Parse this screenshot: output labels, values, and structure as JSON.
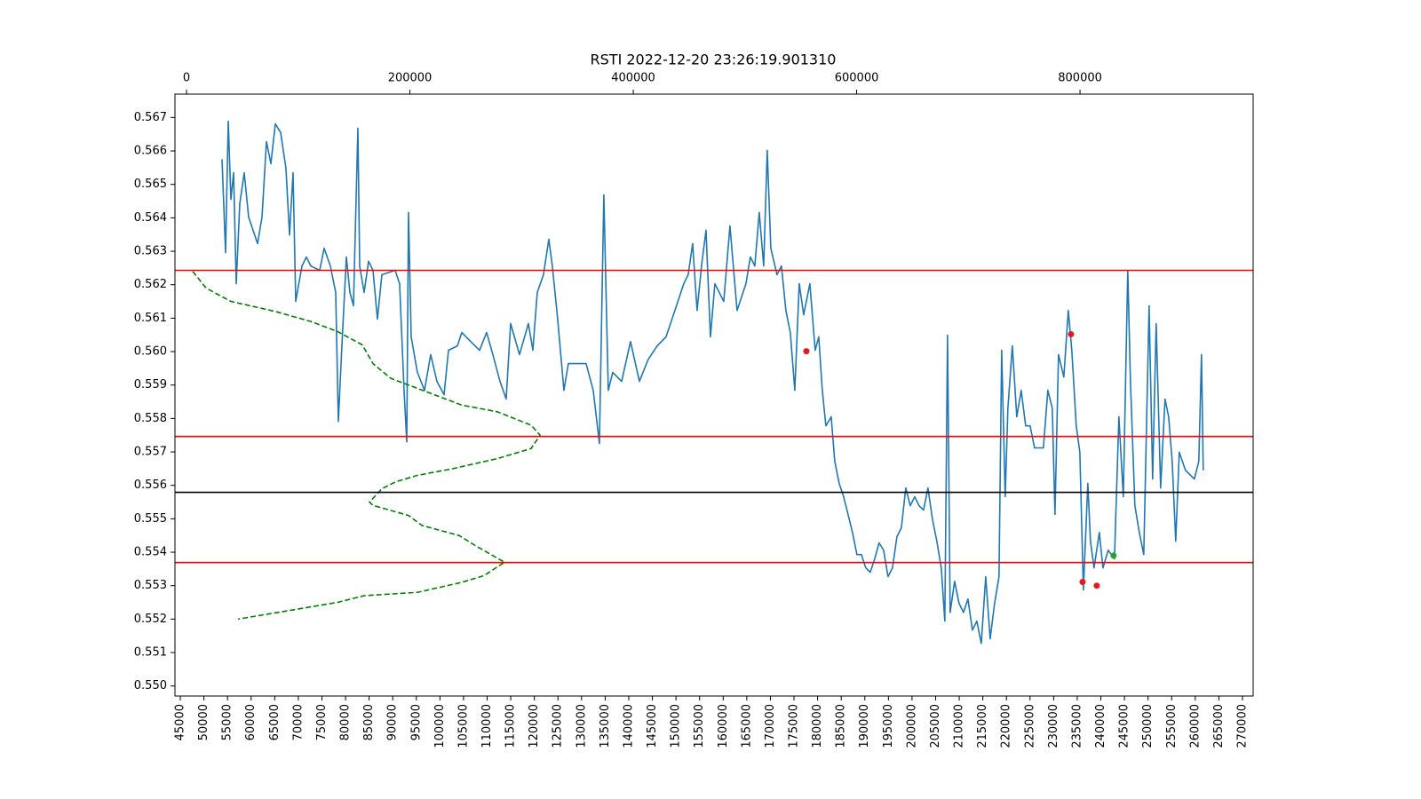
{
  "chart_data": {
    "type": "line",
    "title": "RSTI 2022-12-20 23:26:19.901310",
    "xlim": [
      43870,
      272260
    ],
    "xticks": [
      45000,
      50000,
      55000,
      60000,
      65000,
      70000,
      75000,
      80000,
      85000,
      90000,
      95000,
      100000,
      105000,
      110000,
      115000,
      120000,
      125000,
      130000,
      135000,
      140000,
      145000,
      150000,
      155000,
      160000,
      165000,
      170000,
      175000,
      180000,
      185000,
      190000,
      195000,
      200000,
      205000,
      210000,
      215000,
      220000,
      225000,
      230000,
      235000,
      240000,
      245000,
      250000,
      255000,
      260000,
      265000,
      270000
    ],
    "x2lim": [
      -10340,
      955000
    ],
    "x2ticks": [
      0,
      200000,
      400000,
      600000,
      800000
    ],
    "ylim": [
      0.5497,
      0.5677
    ],
    "yticks": [
      {
        "value": 0.55,
        "label": "0.550"
      },
      0.551,
      0.552,
      0.553,
      0.554,
      0.555,
      0.556,
      0.557,
      0.558,
      0.559,
      {
        "value": 0.56,
        "label": "0.560"
      },
      0.561,
      0.562,
      0.563,
      0.564,
      0.565,
      0.566,
      0.567
    ],
    "hlines": [
      {
        "value": 0.56243,
        "color": "#ff0000"
      },
      {
        "value": 0.55746,
        "color": "#ff0000"
      },
      {
        "value": 0.55579,
        "color": "#000000"
      },
      {
        "value": 0.55369,
        "color": "#ff0000"
      }
    ],
    "series": [
      {
        "kind": "line",
        "color": "#1f77b4",
        "x": [
          53840,
          54590,
          55160,
          55720,
          56290,
          56850,
          57600,
          58540,
          59480,
          61370,
          62310,
          63250,
          64190,
          65130,
          66260,
          67380,
          68140,
          68890,
          69450,
          70770,
          71710,
          72650,
          74530,
          75470,
          76790,
          77920,
          78480,
          79230,
          80180,
          80930,
          81680,
          82620,
          83000,
          83940,
          84880,
          85820,
          86760,
          87700,
          90520,
          91460,
          92400,
          92970,
          93340,
          93910,
          95220,
          96730,
          98040,
          99360,
          100870,
          101810,
          103690,
          104630,
          106510,
          108390,
          109890,
          111210,
          112720,
          114030,
          114970,
          116850,
          118740,
          119680,
          120620,
          121930,
          123060,
          123810,
          124940,
          126260,
          127200,
          130960,
          132470,
          133780,
          134720,
          135660,
          136600,
          138490,
          140370,
          142250,
          144130,
          146010,
          147890,
          149770,
          151650,
          152590,
          153530,
          154470,
          155410,
          156360,
          157300,
          158240,
          160120,
          161430,
          162940,
          164820,
          165760,
          166700,
          167640,
          168580,
          169330,
          170090,
          171400,
          172340,
          173280,
          174220,
          175170,
          176110,
          177050,
          178360,
          179490,
          180240,
          181000,
          181750,
          182880,
          183630,
          184570,
          185510,
          186450,
          187390,
          188330,
          189270,
          190210,
          191150,
          192090,
          193030,
          193980,
          194920,
          195860,
          196800,
          197740,
          198680,
          199620,
          200560,
          201500,
          202440,
          203380,
          204320,
          205260,
          206200,
          206950,
          207520,
          208080,
          209020,
          209960,
          210900,
          211850,
          212790,
          213730,
          214670,
          215610,
          216550,
          217490,
          218430,
          218990,
          219740,
          220310,
          221250,
          222190,
          223130,
          224070,
          225010,
          225950,
          227830,
          228770,
          229710,
          230280,
          231030,
          232160,
          233100,
          233850,
          234790,
          235550,
          236300,
          237240,
          237800,
          238560,
          239680,
          240440,
          241560,
          242880,
          243820,
          244760,
          245700,
          246270,
          247210,
          248150,
          249090,
          250220,
          250970,
          251720,
          252660,
          253600,
          254360,
          255110,
          255860,
          256610,
          257930,
          259810,
          260750,
          261320,
          261690
        ],
        "values": [
          0.56575,
          0.56296,
          0.56689,
          0.56455,
          0.56535,
          0.56203,
          0.56442,
          0.56535,
          0.56402,
          0.56323,
          0.56402,
          0.56628,
          0.56562,
          0.56681,
          0.56655,
          0.56548,
          0.56349,
          0.56535,
          0.5615,
          0.56256,
          0.56283,
          0.56256,
          0.56243,
          0.56309,
          0.56256,
          0.56177,
          0.55791,
          0.56017,
          0.56283,
          0.56177,
          0.56137,
          0.56668,
          0.56256,
          0.56177,
          0.5627,
          0.56243,
          0.56097,
          0.5623,
          0.56243,
          0.56203,
          0.55884,
          0.5573,
          0.56416,
          0.56044,
          0.55938,
          0.55884,
          0.55991,
          0.55911,
          0.55871,
          0.56004,
          0.56017,
          0.56057,
          0.5603,
          0.56004,
          0.56057,
          0.55991,
          0.55911,
          0.55858,
          0.56084,
          0.55991,
          0.56084,
          0.56004,
          0.56177,
          0.5623,
          0.56336,
          0.56256,
          0.56097,
          0.55884,
          0.55964,
          0.55964,
          0.55884,
          0.55725,
          0.56469,
          0.55884,
          0.55938,
          0.55911,
          0.5603,
          0.55911,
          0.55977,
          0.56017,
          0.56044,
          0.56123,
          0.56203,
          0.5623,
          0.56323,
          0.56123,
          0.56256,
          0.56363,
          0.56044,
          0.56203,
          0.5615,
          0.56376,
          0.56123,
          0.56203,
          0.56283,
          0.56256,
          0.56416,
          0.56256,
          0.56602,
          0.56309,
          0.5623,
          0.56256,
          0.56123,
          0.56057,
          0.55884,
          0.56203,
          0.5611,
          0.56203,
          0.56004,
          0.56044,
          0.55884,
          0.55778,
          0.55805,
          0.55672,
          0.55606,
          0.55566,
          0.55513,
          0.55459,
          0.55393,
          0.55393,
          0.55353,
          0.5534,
          0.5538,
          0.55428,
          0.55406,
          0.55327,
          0.55353,
          0.55446,
          0.55473,
          0.55592,
          0.55539,
          0.55566,
          0.55539,
          0.55526,
          0.55592,
          0.55499,
          0.55433,
          0.55353,
          0.55194,
          0.56049,
          0.5522,
          0.55313,
          0.55247,
          0.5522,
          0.5526,
          0.55167,
          0.55194,
          0.55127,
          0.55327,
          0.55141,
          0.55247,
          0.55327,
          0.56004,
          0.55566,
          0.55831,
          0.56017,
          0.55805,
          0.55884,
          0.55778,
          0.55778,
          0.55712,
          0.55712,
          0.55884,
          0.55831,
          0.55513,
          0.55991,
          0.55924,
          0.56123,
          0.56004,
          0.55778,
          0.55699,
          0.55287,
          0.55606,
          0.55433,
          0.55353,
          0.55459,
          0.55353,
          0.55406,
          0.5538,
          0.55805,
          0.55566,
          0.56243,
          0.55911,
          0.55539,
          0.55459,
          0.55393,
          0.56137,
          0.55619,
          0.56084,
          0.55592,
          0.55858,
          0.55805,
          0.55672,
          0.55433,
          0.55699,
          0.55645,
          0.55619,
          0.55672,
          0.55991,
          0.55645
        ]
      },
      {
        "kind": "line",
        "axis": "x2",
        "color": "#008000",
        "dashed": true,
        "x": [
          5570,
          17500,
          39760,
          79500,
          111300,
          135200,
          157450,
          167000,
          182900,
          214700,
          246500,
          278300,
          308500,
          316500,
          308500,
          278300,
          238600,
          206800,
          186900,
          175000,
          163800,
          167000,
          198800,
          210800,
          244100,
          258500,
          284700,
          266400,
          246500,
          206800,
          159000,
          135200,
          46100
        ],
        "values": [
          0.5624,
          0.5619,
          0.5615,
          0.5612,
          0.5609,
          0.5606,
          0.5602,
          0.55964,
          0.5592,
          0.5588,
          0.5584,
          0.5582,
          0.5578,
          0.5575,
          0.5571,
          0.5568,
          0.5565,
          0.5563,
          0.5561,
          0.5559,
          0.5555,
          0.5554,
          0.5551,
          0.5548,
          0.5545,
          0.5542,
          0.5537,
          0.5533,
          0.5531,
          0.5528,
          0.5527,
          0.5525,
          0.552
        ]
      },
      {
        "kind": "scatter",
        "color": "#e31a1c",
        "x": [
          177620,
          233680,
          236130,
          239130
        ],
        "values": [
          0.56001,
          0.56052,
          0.55311,
          0.553
        ]
      },
      {
        "kind": "scatter",
        "color": "#2ca02c",
        "x": [
          242700
        ],
        "values": [
          0.5539
        ]
      }
    ]
  }
}
